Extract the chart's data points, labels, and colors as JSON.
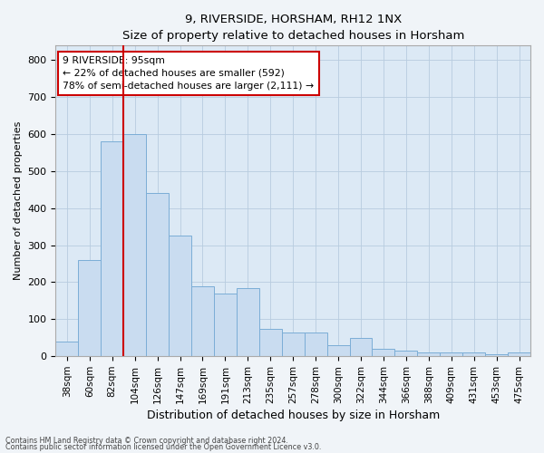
{
  "title": "9, RIVERSIDE, HORSHAM, RH12 1NX",
  "subtitle": "Size of property relative to detached houses in Horsham",
  "xlabel": "Distribution of detached houses by size in Horsham",
  "ylabel": "Number of detached properties",
  "categories": [
    "38sqm",
    "60sqm",
    "82sqm",
    "104sqm",
    "126sqm",
    "147sqm",
    "169sqm",
    "191sqm",
    "213sqm",
    "235sqm",
    "257sqm",
    "278sqm",
    "300sqm",
    "322sqm",
    "344sqm",
    "366sqm",
    "388sqm",
    "409sqm",
    "431sqm",
    "453sqm",
    "475sqm"
  ],
  "values": [
    40,
    260,
    580,
    600,
    440,
    325,
    190,
    170,
    185,
    75,
    65,
    65,
    30,
    50,
    20,
    15,
    10,
    10,
    10,
    5,
    10
  ],
  "bar_color": "#c9dcf0",
  "bar_edgecolor": "#7badd6",
  "red_line_x": 2.5,
  "annotation_text": "9 RIVERSIDE: 95sqm\n← 22% of detached houses are smaller (592)\n78% of semi-detached houses are larger (2,111) →",
  "annotation_box_color": "#ffffff",
  "annotation_box_edgecolor": "#cc0000",
  "ylim": [
    0,
    840
  ],
  "yticks": [
    0,
    100,
    200,
    300,
    400,
    500,
    600,
    700,
    800
  ],
  "footer1": "Contains HM Land Registry data © Crown copyright and database right 2024.",
  "footer2": "Contains public sector information licensed under the Open Government Licence v3.0.",
  "background_color": "#dce9f5",
  "plot_background": "#f0f4f8",
  "grid_color": "#b8ccdf"
}
